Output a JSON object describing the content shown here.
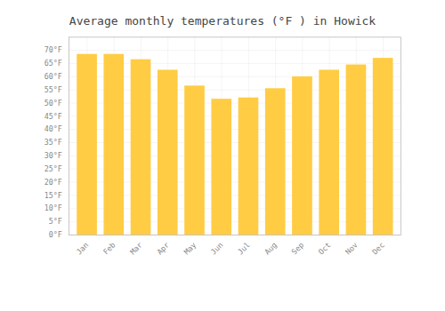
{
  "chart_data": {
    "type": "bar",
    "title": "Average monthly temperatures (°F ) in Howick",
    "categories": [
      "Jan",
      "Feb",
      "Mar",
      "Apr",
      "May",
      "Jun",
      "Jul",
      "Aug",
      "Sep",
      "Oct",
      "Nov",
      "Dec"
    ],
    "values": [
      68.5,
      68.5,
      66.5,
      62.5,
      56.5,
      51.5,
      52.0,
      55.5,
      60.0,
      62.5,
      64.5,
      67.0
    ],
    "color": "#FFCC44",
    "ylim": [
      0,
      75
    ],
    "yticks": [
      {
        "value": 0,
        "label": "0°F"
      },
      {
        "value": 5,
        "label": "5°F"
      },
      {
        "value": 10,
        "label": "10°F"
      },
      {
        "value": 15,
        "label": "15°F"
      },
      {
        "value": 20,
        "label": "20°F"
      },
      {
        "value": 25,
        "label": "25°F"
      },
      {
        "value": 30,
        "label": "30°F"
      },
      {
        "value": 35,
        "label": "35°F"
      },
      {
        "value": 40,
        "label": "40°F"
      },
      {
        "value": 45,
        "label": "45°F"
      },
      {
        "value": 50,
        "label": "50°F"
      },
      {
        "value": 55,
        "label": "55°F"
      },
      {
        "value": 60,
        "label": "60°F"
      },
      {
        "value": 65,
        "label": "65°F"
      },
      {
        "value": 70,
        "label": "70°F"
      }
    ],
    "grid": true
  }
}
